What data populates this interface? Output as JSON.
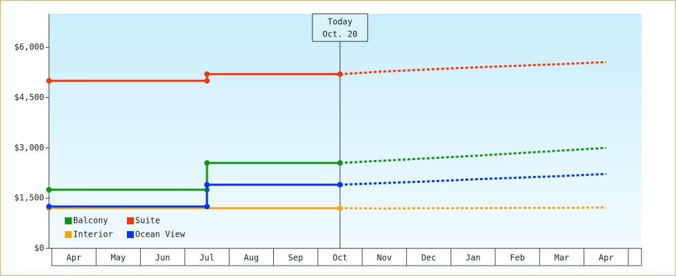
{
  "chart_data": {
    "type": "step-line",
    "categories": [
      "Apr",
      "May",
      "Jun",
      "Jul",
      "Aug",
      "Sep",
      "Oct",
      "Nov",
      "Dec",
      "Jan",
      "Feb",
      "Mar",
      "Apr"
    ],
    "series": [
      {
        "name": "Balcony",
        "color": "#0a9a0a",
        "values": [
          1750,
          1750,
          1750,
          2550,
          2550,
          2550,
          2550,
          2620,
          2690,
          2760,
          2840,
          2920,
          3000
        ]
      },
      {
        "name": "Suite",
        "color": "#ff3300",
        "values": [
          5000,
          5000,
          5000,
          5200,
          5200,
          5200,
          5200,
          5280,
          5340,
          5400,
          5450,
          5500,
          5560
        ]
      },
      {
        "name": "Interior",
        "color": "#ffa500",
        "values": [
          1200,
          1200,
          1200,
          1200,
          1200,
          1200,
          1200,
          1190,
          1200,
          1200,
          1210,
          1210,
          1220
        ]
      },
      {
        "name": "Ocean View",
        "color": "#0033ff",
        "values": [
          1250,
          1250,
          1250,
          1900,
          1900,
          1900,
          1900,
          1950,
          2000,
          2060,
          2110,
          2160,
          2220
        ]
      }
    ],
    "annotation": {
      "lines": [
        "Today",
        "Oct. 20"
      ],
      "at": "Oct"
    },
    "ylim": [
      0,
      7000
    ],
    "yticks": [
      {
        "value": 0,
        "label": "$0"
      },
      {
        "value": 1500,
        "label": "$1,500"
      },
      {
        "value": 3000,
        "label": "$3,000"
      },
      {
        "value": 4500,
        "label": "$4,500"
      },
      {
        "value": 6000,
        "label": "$6,000"
      }
    ],
    "legend": "lower left"
  }
}
